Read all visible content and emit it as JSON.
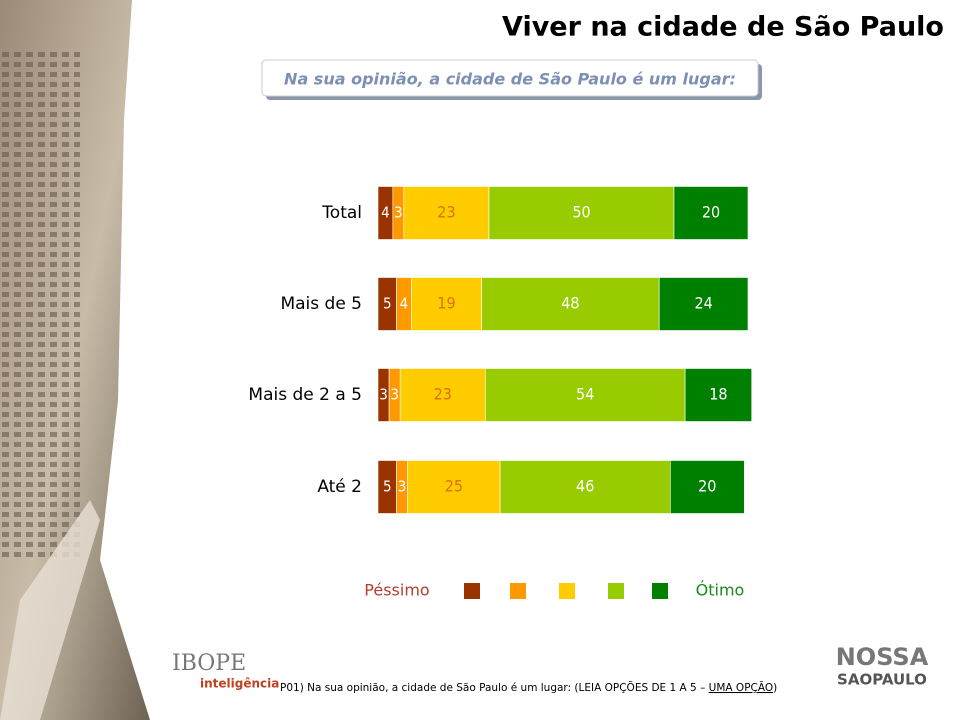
{
  "title": "Viver na cidade de São Paulo",
  "subtitle": "Na sua opinião, a cidade de São Paulo é um lugar:",
  "chart_data": {
    "type": "stacked-bar-horizontal",
    "categories": [
      "Total",
      "Mais de 5",
      "Mais de 2 a 5",
      "Até 2"
    ],
    "series": [
      {
        "color": "#993300",
        "values": [
          4,
          5,
          3,
          5
        ]
      },
      {
        "color": "#ff9900",
        "values": [
          3,
          4,
          3,
          3
        ]
      },
      {
        "color": "#ffcc00",
        "values": [
          23,
          19,
          23,
          25
        ]
      },
      {
        "color": "#99cc00",
        "values": [
          50,
          48,
          54,
          46
        ]
      },
      {
        "color": "#008000",
        "values": [
          20,
          24,
          18,
          20
        ]
      }
    ],
    "xlim": [
      0,
      100
    ],
    "legend_low": "Péssimo",
    "legend_high": "Ótimo"
  },
  "footnote": {
    "text": "P01) Na sua opinião, a cidade de São Paulo é um lugar: (LEIA OPÇÕES DE 1 A 5 – ",
    "underlined": "UMA OPÇÃO",
    "end": ")"
  },
  "logos": {
    "ibope": "IBOPE",
    "ibope_sub": "inteligência",
    "nossa": "NOSSA",
    "saopaulo": "SAOPAULO"
  }
}
